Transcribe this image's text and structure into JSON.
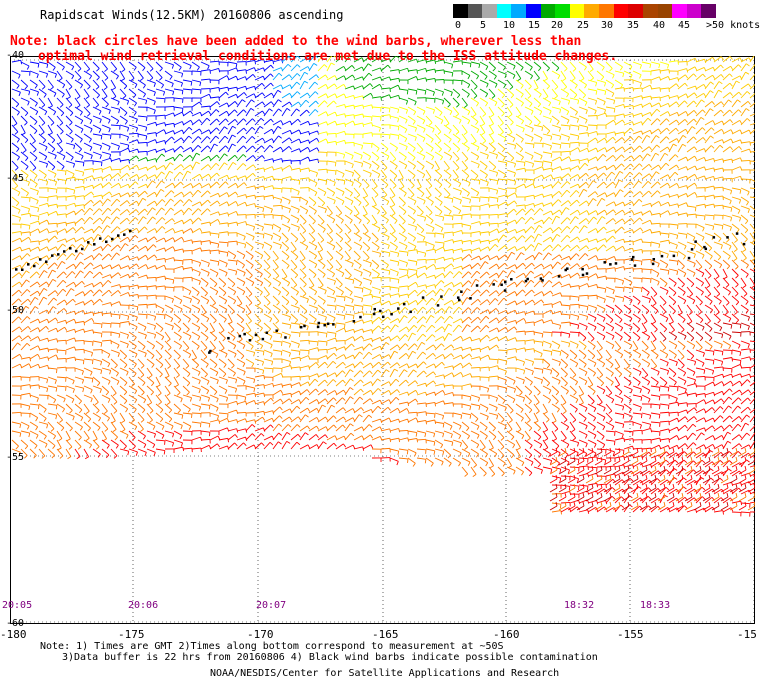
{
  "title": "Rapidscat Winds(12.5KM) 20160806 ascending",
  "note": {
    "line1": "Note: black circles have been added to the wind barbs, wherever less than",
    "line2": "optimal wind retrieval conditions are met due to the ISS attitude changes."
  },
  "legend": {
    "colors": [
      "#000000",
      "#555555",
      "#aaaaaa",
      "#00ffff",
      "#00aaff",
      "#0000ff",
      "#00aa00",
      "#00dd00",
      "#ffff00",
      "#ffaa00",
      "#ff7700",
      "#ff0000",
      "#dd0000",
      "#aa4400",
      "#994400",
      "#ff00ff",
      "#cc00cc",
      "#660066"
    ],
    "labels": [
      "0",
      "5",
      "10",
      "15",
      "20",
      "25",
      "30",
      "35",
      "40",
      "45",
      ">50 knots"
    ],
    "label_x": [
      455,
      480,
      503,
      528,
      551,
      577,
      601,
      627,
      653,
      678,
      706
    ]
  },
  "map": {
    "lat_labels": [
      "-40",
      "-45",
      "-50",
      "-55",
      "-60"
    ],
    "lon_labels": [
      "-180",
      "-175",
      "-170",
      "-165",
      "-160",
      "-155",
      "-15"
    ],
    "time_labels": [
      "20:05",
      "20:06",
      "20:07",
      "18:32",
      "18:33"
    ]
  },
  "footer": {
    "note1": "Note: 1) Times are GMT 2)Times along bottom correspond to measurement at ~50S",
    "note2": "3)Data buffer is 22 hrs from 20160806 4) Black wind barbs indicate possible contamination",
    "credit": "NOAA/NESDIS/Center for Satellite Applications and Research"
  }
}
